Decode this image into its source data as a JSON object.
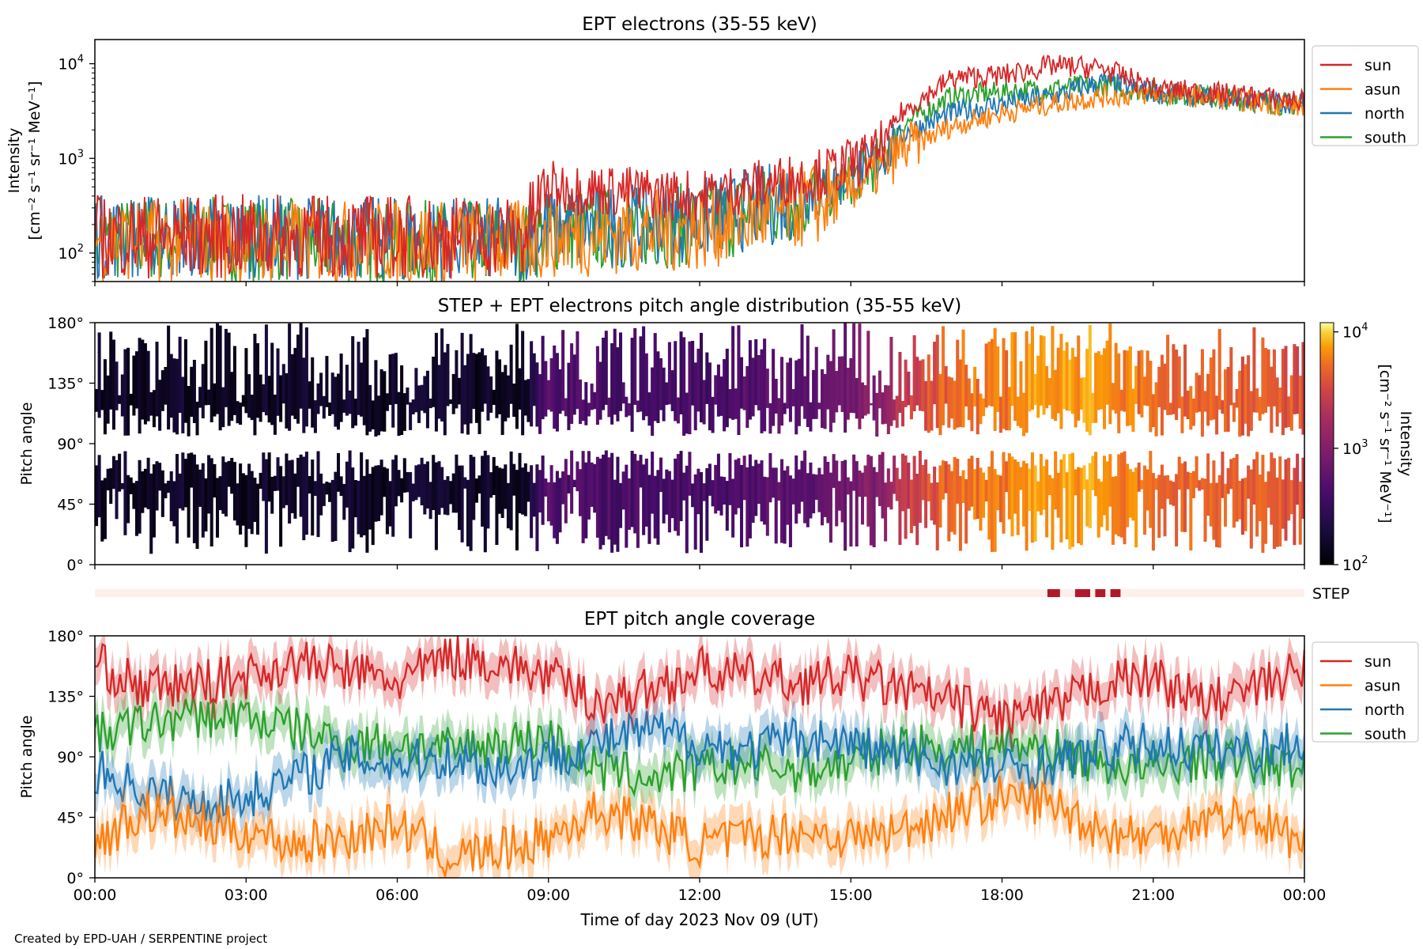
{
  "figure": {
    "credit": "Created by EPD-UAH / SERPENTINE project",
    "xlabel": "Time of day 2023 Nov 09 (UT)",
    "xticks": [
      "00:00",
      "03:00",
      "06:00",
      "09:00",
      "12:00",
      "15:00",
      "18:00",
      "21:00",
      "00:00"
    ]
  },
  "colors": {
    "sun": "#d62728",
    "asun": "#ff7f0e",
    "north": "#1f77b4",
    "south": "#2ca02c",
    "step_bar": "#b2182b",
    "step_bg": "#fdf0ec"
  },
  "chart_data": [
    {
      "type": "line",
      "title": "EPT electrons (35-55 keV)",
      "ylabel_line1": "Intensity",
      "ylabel_line2": "[cm⁻² s⁻¹ sr⁻¹ MeV⁻¹]",
      "yscale": "log",
      "ylim": [
        50,
        18000
      ],
      "yticks": [
        {
          "base": "10",
          "exp": "2"
        },
        {
          "base": "10",
          "exp": "3"
        },
        {
          "base": "10",
          "exp": "4"
        }
      ],
      "x_hours": [
        0,
        3,
        6,
        8.5,
        9,
        12,
        14.5,
        15.5,
        16,
        17,
        18,
        19,
        20,
        21,
        22,
        23,
        24
      ],
      "series": [
        {
          "name": "sun",
          "values": [
            150,
            150,
            150,
            150,
            500,
            400,
            700,
            1100,
            3000,
            7000,
            7500,
            9500,
            9000,
            5500,
            5000,
            4500,
            4000
          ]
        },
        {
          "name": "asun",
          "values": [
            140,
            130,
            130,
            130,
            150,
            180,
            350,
            700,
            1200,
            2200,
            3000,
            3800,
            4500,
            4800,
            4500,
            4000,
            3500
          ]
        },
        {
          "name": "north",
          "values": [
            150,
            150,
            140,
            140,
            180,
            220,
            450,
            900,
            1800,
            3000,
            3800,
            4500,
            6500,
            5000,
            4500,
            4200,
            3800
          ]
        },
        {
          "name": "south",
          "values": [
            140,
            140,
            130,
            130,
            170,
            200,
            420,
            850,
            2200,
            4500,
            5000,
            5500,
            6000,
            5000,
            4500,
            4000,
            3600
          ]
        }
      ],
      "legend": [
        "sun",
        "asun",
        "north",
        "south"
      ],
      "legend_position": "right"
    },
    {
      "type": "heatmap",
      "title": "STEP + EPT electrons pitch angle distribution (35-55 keV)",
      "ylabel": "Pitch angle",
      "yticks": [
        "0°",
        "45°",
        "90°",
        "135°",
        "180°"
      ],
      "colorbar_label_line1": "Intensity",
      "colorbar_label_line2": "[cm⁻² s⁻¹ sr⁻¹ MeV⁻¹]",
      "colorbar_ticks": [
        {
          "base": "10",
          "exp": "2"
        },
        {
          "base": "10",
          "exp": "3"
        },
        {
          "base": "10",
          "exp": "4"
        }
      ],
      "colorscale": "inferno-like",
      "clim": [
        100,
        12000
      ],
      "x_hours": [
        0,
        3,
        6,
        8.5,
        9,
        12,
        14.5,
        15.5,
        16,
        17,
        18,
        19,
        20,
        21,
        22,
        23,
        24
      ],
      "intensity": [
        150,
        150,
        150,
        150,
        450,
        400,
        650,
        1000,
        2500,
        5000,
        5500,
        7500,
        7000,
        5000,
        4500,
        4200,
        3800
      ]
    },
    {
      "type": "bar",
      "label": "STEP",
      "coverage_hours": [
        [
          18.9,
          19.15
        ],
        [
          19.45,
          19.75
        ],
        [
          19.85,
          20.05
        ],
        [
          20.15,
          20.35
        ]
      ]
    },
    {
      "type": "line",
      "title": "EPT pitch angle coverage",
      "ylabel": "Pitch angle",
      "yticks": [
        "0°",
        "45°",
        "90°",
        "135°",
        "180°"
      ],
      "ylim": [
        0,
        180
      ],
      "x_hours": [
        0,
        1,
        2,
        3,
        4,
        5,
        6,
        7,
        8,
        9,
        10,
        11,
        12,
        13,
        14,
        15,
        16,
        17,
        18,
        19,
        20,
        21,
        22,
        23,
        24
      ],
      "series": [
        {
          "name": "sun",
          "values": [
            160,
            140,
            145,
            150,
            160,
            155,
            145,
            165,
            160,
            150,
            130,
            140,
            155,
            150,
            145,
            150,
            140,
            130,
            120,
            125,
            145,
            150,
            130,
            140,
            155
          ]
        },
        {
          "name": "asun",
          "values": [
            25,
            50,
            40,
            35,
            25,
            30,
            40,
            15,
            20,
            30,
            50,
            40,
            25,
            30,
            35,
            30,
            35,
            50,
            60,
            55,
            35,
            30,
            45,
            45,
            25
          ]
        },
        {
          "name": "north",
          "values": [
            80,
            65,
            55,
            60,
            75,
            90,
            85,
            90,
            80,
            90,
            100,
            110,
            100,
            95,
            105,
            100,
            90,
            85,
            80,
            85,
            95,
            100,
            95,
            95,
            100
          ]
        },
        {
          "name": "south",
          "values": [
            105,
            115,
            120,
            120,
            110,
            100,
            100,
            95,
            100,
            105,
            80,
            75,
            80,
            85,
            80,
            85,
            100,
            95,
            100,
            95,
            85,
            80,
            90,
            85,
            80
          ]
        }
      ],
      "legend": [
        "sun",
        "asun",
        "north",
        "south"
      ],
      "legend_position": "right"
    }
  ]
}
